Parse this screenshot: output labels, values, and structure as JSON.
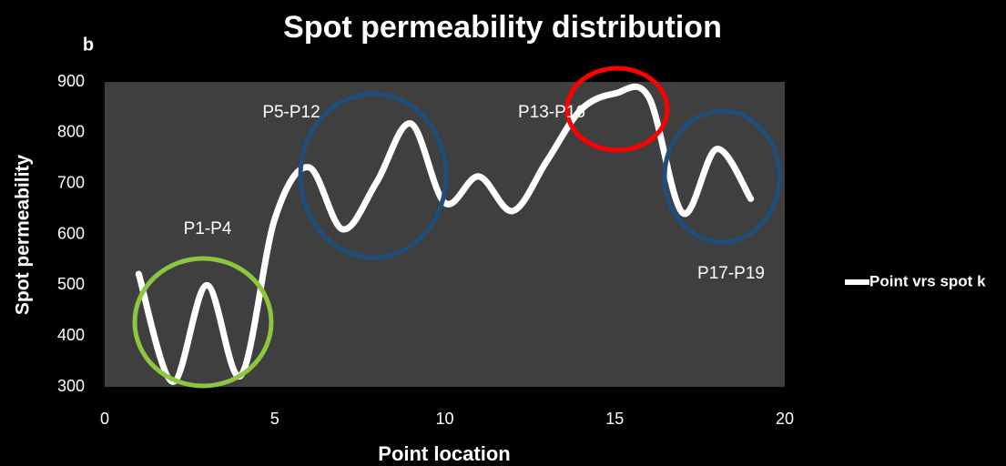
{
  "chart_data": {
    "type": "line",
    "title": "Spot permeability distribution",
    "panel_label": "b",
    "x_label": "Point location",
    "y_label": "Spot permeability",
    "x": [
      1,
      2,
      3,
      4,
      5,
      6,
      7,
      8,
      9,
      10,
      11,
      12,
      13,
      14,
      15,
      16,
      17,
      18,
      19
    ],
    "series": [
      {
        "name": "Point vrs spot k",
        "color": "#ffffff",
        "values": [
          522,
          310,
          500,
          322,
          630,
          732,
          610,
          703,
          818,
          662,
          714,
          646,
          744,
          845,
          877,
          870,
          642,
          768,
          670
        ]
      }
    ],
    "xlim": [
      0,
      20
    ],
    "xticks": [
      0,
      5,
      10,
      15,
      20
    ],
    "ylim": [
      300,
      900
    ],
    "yticks": [
      300,
      400,
      500,
      600,
      700,
      800,
      900
    ],
    "grid": false,
    "smooth": true,
    "legend": "right",
    "annotations": [
      "P1-P4",
      "P5-P12",
      "P13-P16",
      "P17-P19"
    ]
  }
}
